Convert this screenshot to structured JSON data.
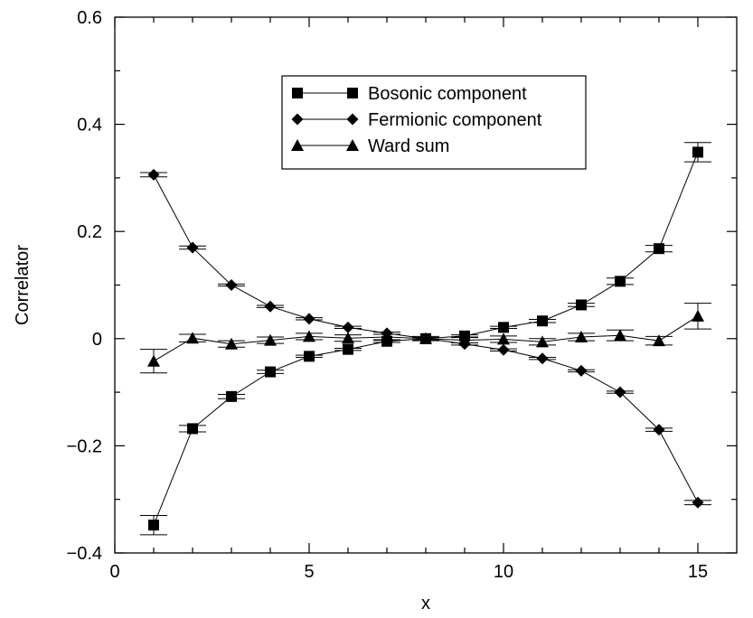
{
  "chart_data": {
    "type": "scatter",
    "title": "",
    "xlabel": "x",
    "ylabel": "Correlator",
    "xlim": [
      0,
      16
    ],
    "ylim": [
      -0.4,
      0.6
    ],
    "x_ticks": [
      0,
      5,
      10,
      15
    ],
    "x_minor_ticks": [
      1,
      2,
      3,
      4,
      6,
      7,
      8,
      9,
      11,
      12,
      13,
      14
    ],
    "y_ticks": [
      -0.4,
      -0.2,
      0,
      0.2,
      0.4,
      0.6
    ],
    "y_tick_labels": [
      "−0.4",
      "−0.2",
      "0",
      "0.2",
      "0.4",
      "0.6"
    ],
    "y_minor_ticks": [
      -0.3,
      -0.1,
      0.1,
      0.3,
      0.5
    ],
    "grid": false,
    "legend_position": "top-center",
    "series": [
      {
        "name": "Bosonic component",
        "marker": "square",
        "x": [
          1,
          2,
          3,
          4,
          5,
          6,
          7,
          8,
          9,
          10,
          11,
          12,
          13,
          14,
          15
        ],
        "y": [
          -0.348,
          -0.168,
          -0.108,
          -0.062,
          -0.033,
          -0.02,
          -0.005,
          0.0,
          0.005,
          0.021,
          0.033,
          0.063,
          0.107,
          0.168,
          0.348
        ],
        "err": [
          0.018,
          0.006,
          0.004,
          0.003,
          0.002,
          0.002,
          0.002,
          0.002,
          0.002,
          0.002,
          0.003,
          0.003,
          0.006,
          0.006,
          0.018
        ]
      },
      {
        "name": "Fermionic component",
        "marker": "diamond",
        "x": [
          1,
          2,
          3,
          4,
          5,
          6,
          7,
          8,
          9,
          10,
          11,
          12,
          13,
          14,
          15
        ],
        "y": [
          0.306,
          0.17,
          0.1,
          0.06,
          0.037,
          0.021,
          0.01,
          0.0,
          -0.01,
          -0.021,
          -0.037,
          -0.06,
          -0.1,
          -0.17,
          -0.306
        ],
        "err": [
          0.004,
          0.003,
          0.002,
          0.002,
          0.002,
          0.002,
          0.002,
          0.002,
          0.002,
          0.002,
          0.002,
          0.002,
          0.002,
          0.003,
          0.004
        ]
      },
      {
        "name": "Ward sum",
        "marker": "triangle",
        "x": [
          1,
          2,
          3,
          4,
          5,
          6,
          7,
          8,
          9,
          10,
          11,
          12,
          13,
          14,
          15
        ],
        "y": [
          -0.042,
          0.001,
          -0.01,
          -0.003,
          0.004,
          0.001,
          0.003,
          0.0,
          -0.003,
          -0.001,
          -0.006,
          0.003,
          0.006,
          -0.004,
          0.042
        ],
        "err": [
          0.022,
          0.007,
          0.006,
          0.006,
          0.006,
          0.006,
          0.005,
          0.004,
          0.005,
          0.006,
          0.006,
          0.007,
          0.01,
          0.008,
          0.024
        ]
      }
    ]
  }
}
